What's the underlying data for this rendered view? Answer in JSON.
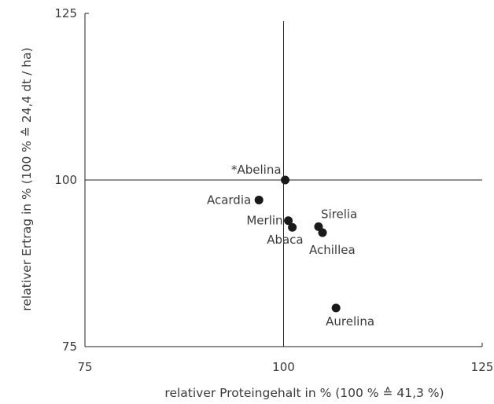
{
  "chart_data": {
    "type": "scatter",
    "xlabel": "relativer Proteingehalt in % (100 % ≙ 41,3 %)",
    "ylabel": "relativer Ertrag in % (100 % ≙  24,4 dt / ha)",
    "xlim": [
      75,
      125
    ],
    "ylim": [
      75,
      125
    ],
    "x_ticks": [
      "75",
      "100",
      "125"
    ],
    "y_ticks": [
      "75",
      "100",
      "125"
    ],
    "reference_lines": {
      "x": 100,
      "y": 100
    },
    "grid": false,
    "legend": "none",
    "points": [
      {
        "label": "*Abelina",
        "x": 100.2,
        "y": 100.0
      },
      {
        "label": "Acardia",
        "x": 96.9,
        "y": 97.0
      },
      {
        "label": "Merlin",
        "x": 100.6,
        "y": 93.9
      },
      {
        "label": "Abaca",
        "x": 101.1,
        "y": 92.9
      },
      {
        "label": "Sirelia",
        "x": 104.4,
        "y": 93.0
      },
      {
        "label": "Achillea",
        "x": 104.9,
        "y": 92.1
      },
      {
        "label": "Aurelina",
        "x": 106.6,
        "y": 80.8
      }
    ],
    "point_color": "#1a1a1a"
  }
}
